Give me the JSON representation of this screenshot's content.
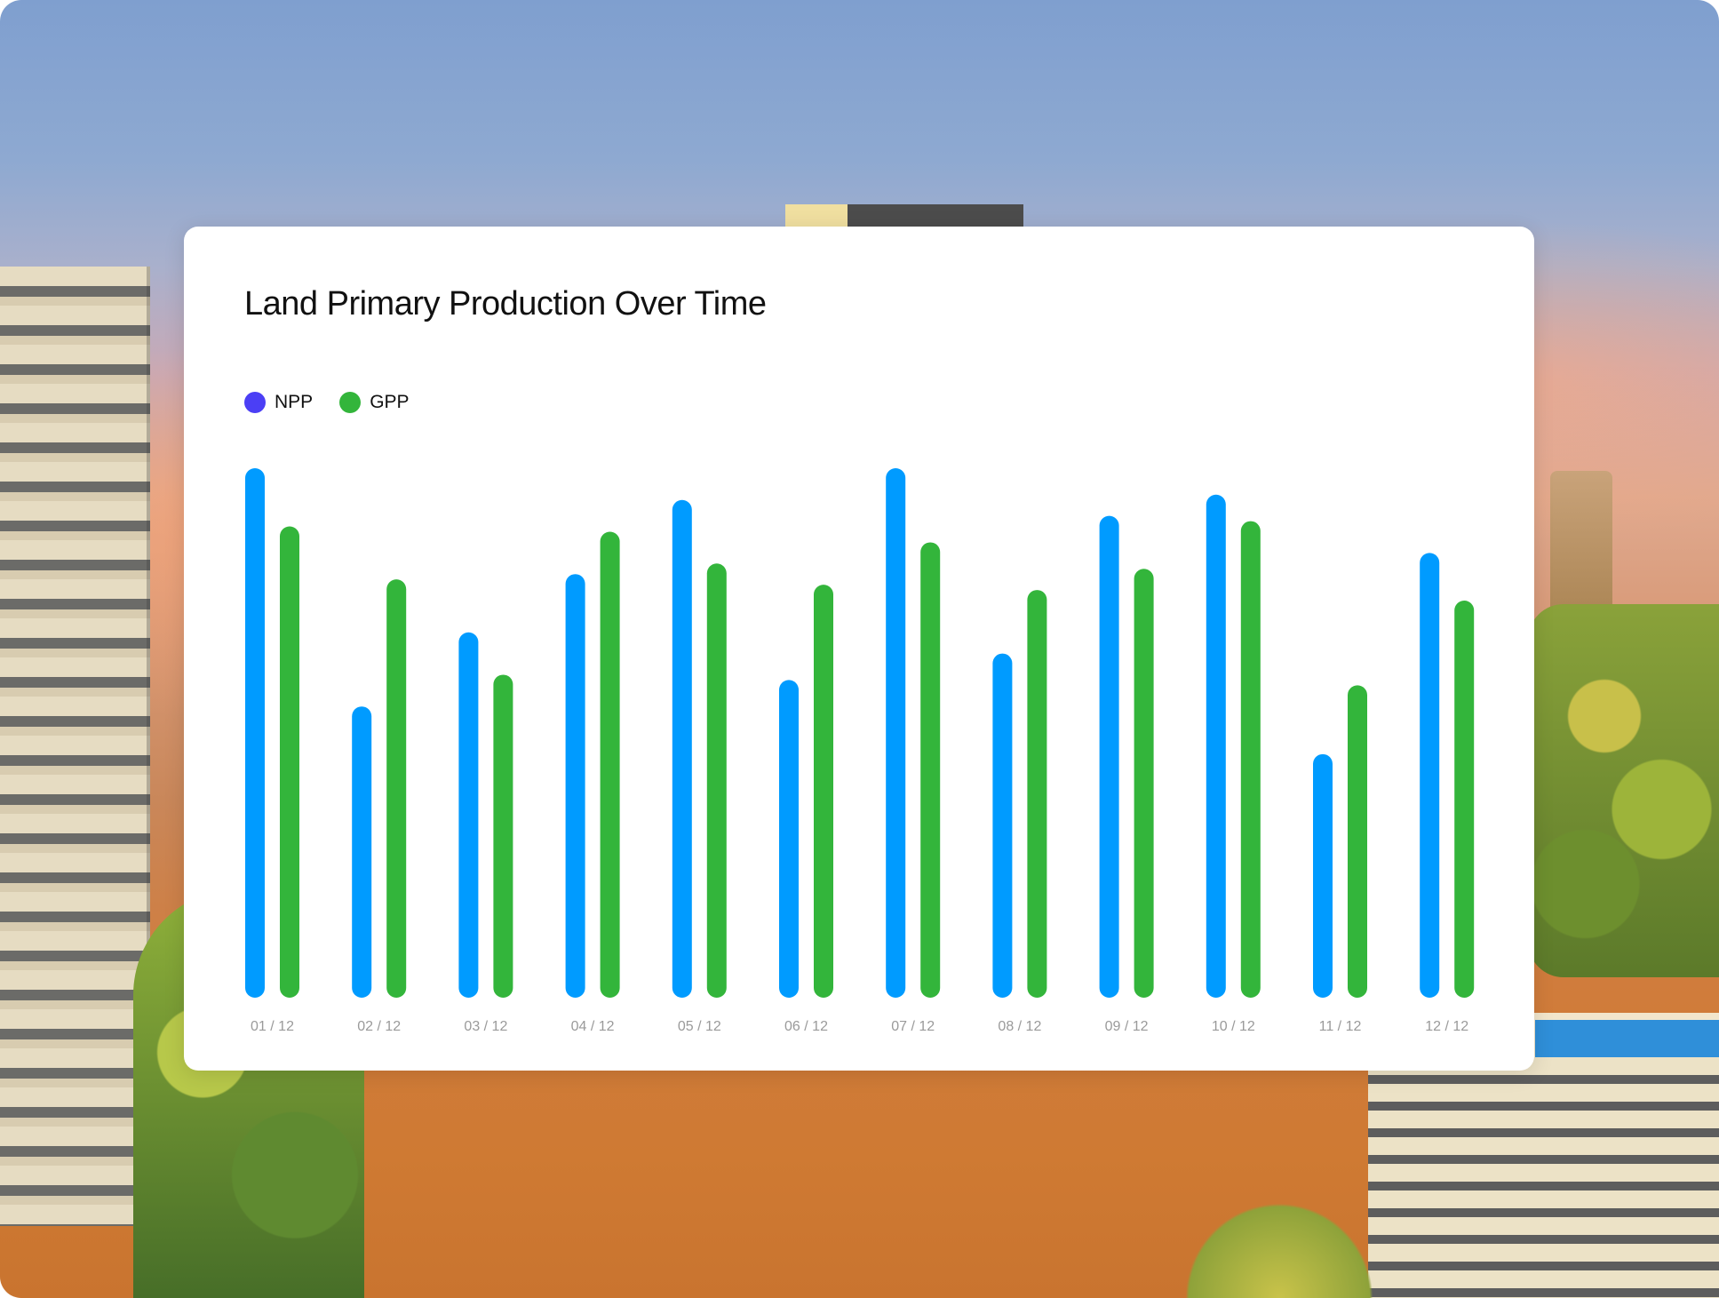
{
  "chart_data": {
    "type": "bar",
    "title": "Land Primary Production Over Time",
    "xlabel": "",
    "ylabel": "",
    "categories": [
      "01 / 12",
      "02 / 12",
      "03 / 12",
      "04 / 12",
      "05 / 12",
      "06 / 12",
      "07 / 12",
      "08 / 12",
      "09 / 12",
      "10 / 12",
      "11 / 12",
      "12 / 12"
    ],
    "series": [
      {
        "name": "NPP",
        "color": "#009BFF",
        "values": [
          100,
          55,
          69,
          80,
          94,
          60,
          100,
          65,
          91,
          95,
          46,
          84
        ]
      },
      {
        "name": "GPP",
        "color": "#33B53B",
        "values": [
          89,
          79,
          61,
          88,
          82,
          78,
          86,
          77,
          81,
          90,
          59,
          75
        ]
      }
    ],
    "ylim": [
      0,
      100
    ],
    "grid": false,
    "legend_position": "top-left",
    "legend": [
      {
        "name": "NPP",
        "color": "#4B3FF5"
      },
      {
        "name": "GPP",
        "color": "#33B53B"
      }
    ]
  }
}
